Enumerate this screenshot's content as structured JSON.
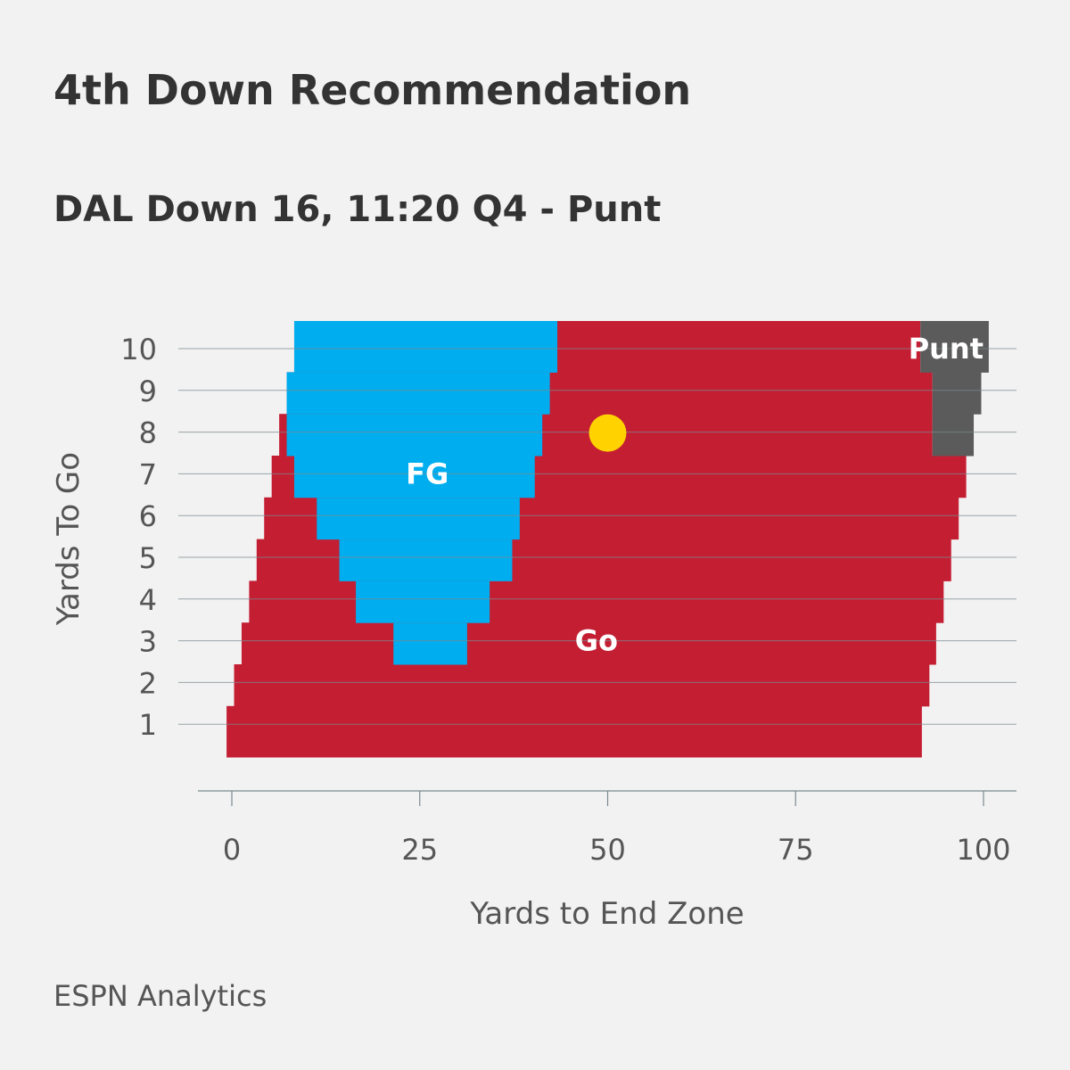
{
  "title": "4th Down Recommendation",
  "subtitle": "DAL Down 16, 11:20 Q4 - Punt",
  "source": "ESPN Analytics",
  "colors": {
    "go": "#c41e33",
    "fg": "#00aeef",
    "punt": "#5b5b5b",
    "marker": "#ffd200",
    "background": "#f2f2f2",
    "axis_text": "#555555"
  },
  "chart_data": {
    "type": "heatmap",
    "title": "",
    "xlabel": "Yards to End Zone",
    "ylabel": "Yards To Go",
    "xlim": [
      -1,
      103
    ],
    "ylim": [
      0,
      10.7
    ],
    "xticks": [
      "0",
      "25",
      "50",
      "75",
      "100"
    ],
    "xtick_values": [
      0,
      25,
      50,
      75,
      100
    ],
    "yticks": [
      "1",
      "2",
      "3",
      "4",
      "5",
      "6",
      "7",
      "8",
      "9",
      "10"
    ],
    "ytick_values": [
      1,
      2,
      3,
      4,
      5,
      6,
      7,
      8,
      9,
      10
    ],
    "grid": "horizontal",
    "region_labels": [
      {
        "label": "Go",
        "key": "go",
        "x": 48.5,
        "y": 3
      },
      {
        "label": "FG",
        "key": "fg",
        "x": 26,
        "y": 7
      },
      {
        "label": "Punt",
        "key": "punt",
        "x": 95,
        "y": 10
      }
    ],
    "decision_bands": [
      {
        "ytg": 1,
        "go_start": -0.7,
        "go_end": 91.8
      },
      {
        "ytg": 2,
        "go_start": 0.3,
        "go_end": 92.8
      },
      {
        "ytg": 3,
        "go_start": 1.3,
        "go_end": 93.7,
        "fg_start": 21.5,
        "fg_end": 31.3
      },
      {
        "ytg": 4,
        "go_start": 2.3,
        "go_end": 94.7,
        "fg_start": 16.5,
        "fg_end": 34.3
      },
      {
        "ytg": 5,
        "go_start": 3.3,
        "go_end": 95.7,
        "fg_start": 14.3,
        "fg_end": 37.3
      },
      {
        "ytg": 6,
        "go_start": 4.3,
        "go_end": 96.7,
        "fg_start": 11.3,
        "fg_end": 38.3
      },
      {
        "ytg": 7,
        "go_start": 5.3,
        "go_end": 97.7,
        "fg_start": 8.3,
        "fg_end": 40.3
      },
      {
        "ytg": 8,
        "go_start": 6.3,
        "go_end": 93.2,
        "fg_start": 7.3,
        "fg_end": 41.3,
        "punt_start": 93.2,
        "punt_end": 98.7
      },
      {
        "ytg": 9,
        "go_start": 7.3,
        "go_end": 93.2,
        "fg_start": 7.3,
        "fg_end": 42.3,
        "punt_start": 93.2,
        "punt_end": 99.7
      },
      {
        "ytg": 10,
        "go_start": 8.3,
        "go_end": 91.6,
        "fg_start": 8.3,
        "fg_end": 43.3,
        "punt_start": 91.6,
        "punt_end": 100.7
      }
    ],
    "current_situation": {
      "yards_to_end_zone": 50,
      "yards_to_go": 8
    }
  }
}
